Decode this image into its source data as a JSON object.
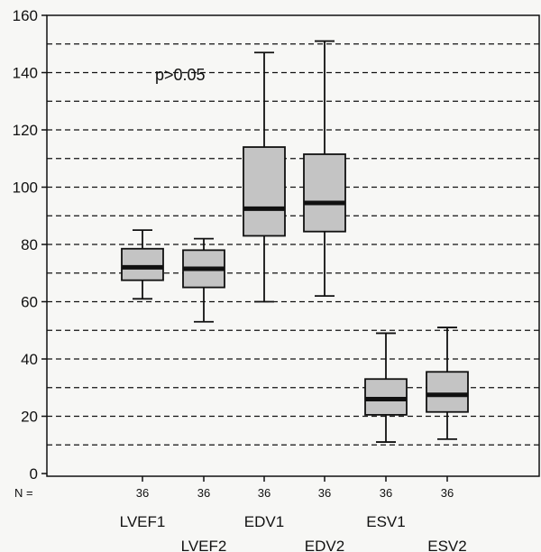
{
  "chart_data": {
    "type": "box",
    "title": "",
    "xlabel": "",
    "ylabel": "",
    "ylim": [
      0,
      160
    ],
    "yticks": [
      0,
      20,
      40,
      60,
      80,
      100,
      120,
      140,
      160
    ],
    "gridlines": [
      10,
      20,
      30,
      40,
      50,
      60,
      70,
      80,
      90,
      100,
      110,
      120,
      130,
      140,
      150
    ],
    "grid": "horizontal dashed",
    "n_prefix": "N =",
    "annotation": "p>0.05",
    "boxes": [
      {
        "label": "LVEF1",
        "n": "36",
        "min": 61,
        "q1": 67.5,
        "median": 72,
        "q3": 78.5,
        "max": 85
      },
      {
        "label": "LVEF2",
        "n": "36",
        "min": 53,
        "q1": 65,
        "median": 71.5,
        "q3": 78,
        "max": 82
      },
      {
        "label": "EDV1",
        "n": "36",
        "min": 60,
        "q1": 83,
        "median": 92.5,
        "q3": 114,
        "max": 147
      },
      {
        "label": "EDV2",
        "n": "36",
        "min": 62,
        "q1": 84.5,
        "median": 94.5,
        "q3": 111.5,
        "max": 151
      },
      {
        "label": "ESV1",
        "n": "36",
        "min": 11,
        "q1": 20.5,
        "median": 26,
        "q3": 33,
        "max": 49
      },
      {
        "label": "ESV2",
        "n": "36",
        "min": 12,
        "q1": 21.5,
        "median": 27.5,
        "q3": 35.5,
        "max": 51
      }
    ],
    "colors": {
      "box_fill": "#c4c4c4",
      "stroke": "#111111",
      "background": "#f7f7f5"
    }
  }
}
